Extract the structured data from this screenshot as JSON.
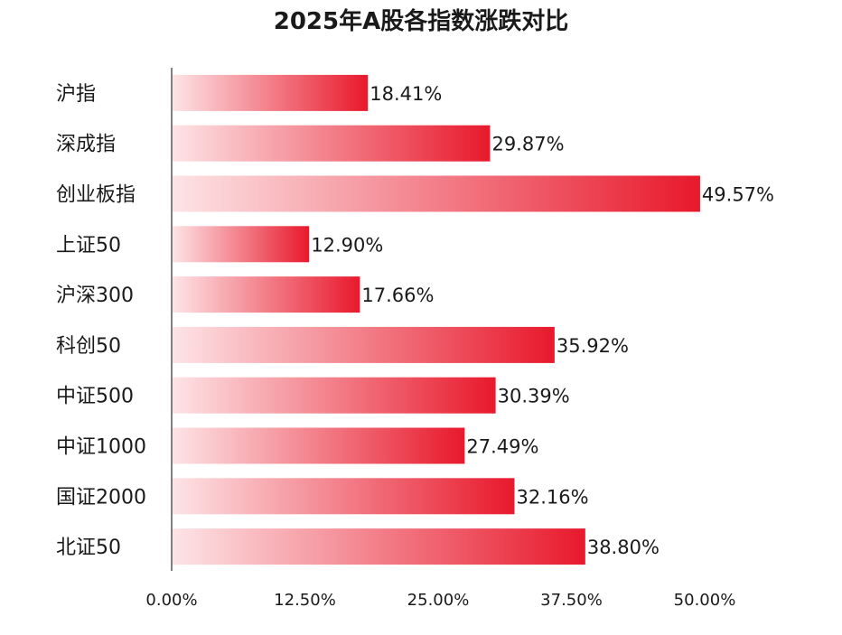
{
  "chart_data": {
    "type": "bar",
    "orientation": "horizontal",
    "title": "2025年A股各指数涨跌对比",
    "categories": [
      "沪指",
      "深成指",
      "创业板指",
      "上证50",
      "沪深300",
      "科创50",
      "中证500",
      "中证1000",
      "国证2000",
      "北证50"
    ],
    "values": [
      18.41,
      29.87,
      49.57,
      12.9,
      17.66,
      35.92,
      30.39,
      27.49,
      32.16,
      38.8
    ],
    "value_labels": [
      "18.41%",
      "29.87%",
      "49.57%",
      "12.90%",
      "17.66%",
      "35.92%",
      "30.39%",
      "27.49%",
      "32.16%",
      "38.80%"
    ],
    "xticks": [
      0,
      12.5,
      25,
      37.5,
      50
    ],
    "xtick_labels": [
      "0.00%",
      "12.50%",
      "25.00%",
      "37.50%",
      "50.00%"
    ],
    "xlim": [
      0,
      50
    ],
    "xlabel": "",
    "ylabel": "",
    "grid": false,
    "legend": "none",
    "colors": {
      "bar_start": "#fde4e6",
      "bar_end": "#e8192c",
      "axis": "#555555",
      "text": "#1a1a1a"
    }
  }
}
